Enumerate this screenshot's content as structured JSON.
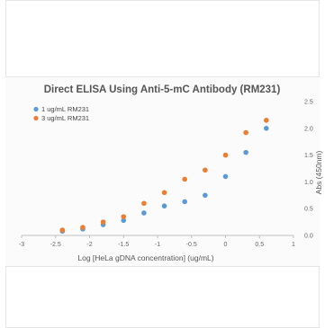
{
  "chart_data": {
    "type": "scatter",
    "title": "Direct ELISA Using Anti-5-mC Antibody (RM231)",
    "xlabel": "Log [HeLa gDNA concentration] (ug/mL)",
    "ylabel": "Abs (450nm)",
    "xlim": [
      -3,
      1
    ],
    "ylim": [
      0,
      2.5
    ],
    "x_ticks": [
      -3,
      -2.5,
      -2,
      -1.5,
      -1,
      -0.5,
      0,
      0.5,
      1
    ],
    "x_tick_labels": [
      "-3",
      "-2.5",
      "-2",
      "-1.5",
      "-1",
      "-0.5",
      "0",
      "0.5",
      "1"
    ],
    "y_ticks": [
      0,
      0.5,
      1,
      1.5,
      2,
      2.5
    ],
    "y_tick_labels": [
      "0.0",
      "0.5",
      "1.0",
      "1.5",
      "2.0",
      "2.5"
    ],
    "y_axis_side": "right",
    "grid": false,
    "legend_position": "top-left",
    "series": [
      {
        "name": "1 ug/mL RM231",
        "color": "#5b9bd5",
        "x": [
          -2.4,
          -2.1,
          -1.8,
          -1.5,
          -1.2,
          -0.9,
          -0.6,
          -0.3,
          0.0,
          0.3,
          0.6
        ],
        "y": [
          0.08,
          0.12,
          0.2,
          0.28,
          0.42,
          0.55,
          0.63,
          0.75,
          1.1,
          1.55,
          2.0
        ]
      },
      {
        "name": "3 ug/mL RM231",
        "color": "#ed7d31",
        "x": [
          -2.4,
          -2.1,
          -1.8,
          -1.5,
          -1.2,
          -0.9,
          -0.6,
          -0.3,
          0.0,
          0.3,
          0.6
        ],
        "y": [
          0.1,
          0.15,
          0.25,
          0.35,
          0.6,
          0.8,
          1.05,
          1.22,
          1.5,
          1.92,
          2.15
        ]
      }
    ]
  }
}
